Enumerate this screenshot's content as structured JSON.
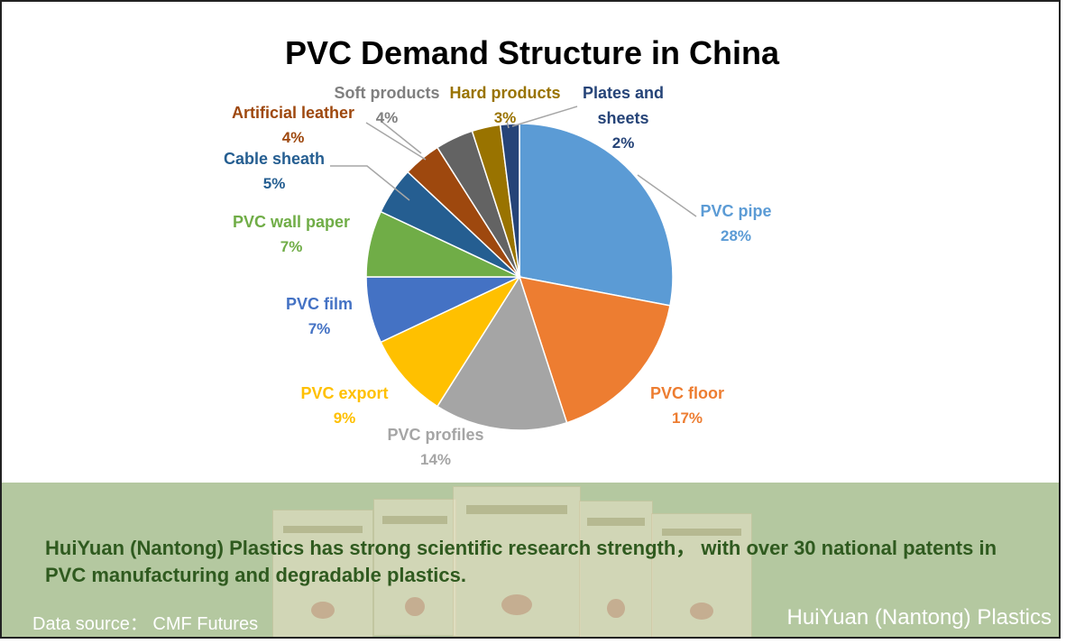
{
  "chart_data": {
    "type": "pie",
    "title": "PVC Demand Structure in China",
    "slices": [
      {
        "label": "PVC pipe",
        "value": 28,
        "value_label": "28%",
        "color": "#5b9bd5"
      },
      {
        "label": "PVC floor",
        "value": 17,
        "value_label": "17%",
        "color": "#ed7d31"
      },
      {
        "label": "PVC profiles",
        "value": 14,
        "value_label": "14%",
        "color": "#a5a5a5"
      },
      {
        "label": "PVC export",
        "value": 9,
        "value_label": "9%",
        "color": "#ffc000"
      },
      {
        "label": "PVC film",
        "value": 7,
        "value_label": "7%",
        "color": "#4472c4"
      },
      {
        "label": "PVC wall paper",
        "value": 7,
        "value_label": "7%",
        "color": "#70ad47"
      },
      {
        "label": "Cable sheath",
        "value": 5,
        "value_label": "5%",
        "color": "#255e91"
      },
      {
        "label": "Artificial leather",
        "value": 4,
        "value_label": "4%",
        "color": "#9e480e"
      },
      {
        "label": "Soft products",
        "value": 4,
        "value_label": "4%",
        "color": "#636363"
      },
      {
        "label": "Hard products",
        "value": 3,
        "value_label": "3%",
        "color": "#997300"
      },
      {
        "label": "Plates and sheets",
        "value": 2,
        "value_label": "2%",
        "color": "#264478"
      }
    ]
  },
  "footer": {
    "description": "HuiYuan (Nantong) Plastics has strong scientific research strength， with over 30 national patents in PVC manufacturing and degradable plastics.",
    "source": "Data source：  CMF Futures",
    "brand": "HuiYuan (Nantong) Plastics"
  }
}
